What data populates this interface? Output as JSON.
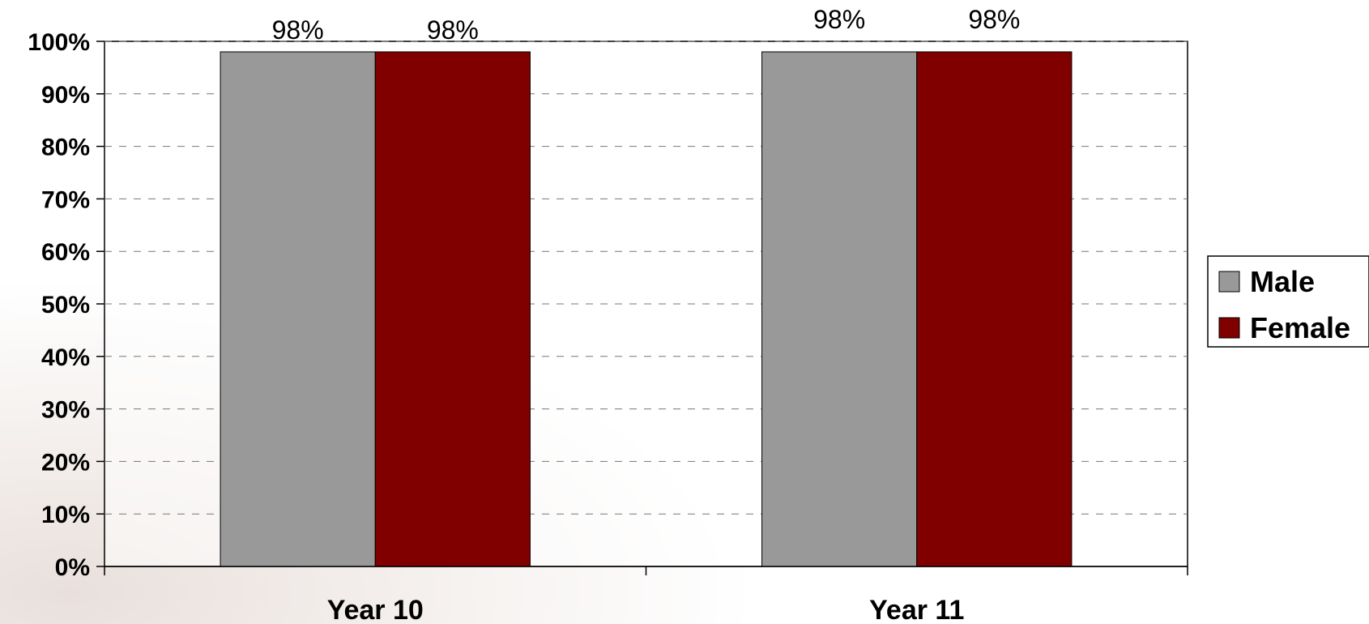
{
  "chart_data": {
    "type": "bar",
    "categories": [
      "Year 10",
      "Year 11"
    ],
    "series": [
      {
        "name": "Male",
        "values": [
          98,
          98
        ],
        "color": "#999999"
      },
      {
        "name": "Female",
        "values": [
          98,
          98
        ],
        "color": "#800000"
      }
    ],
    "data_labels": [
      [
        "98%",
        "98%"
      ],
      [
        "98%",
        "98%"
      ]
    ],
    "yticks": [
      "0%",
      "10%",
      "20%",
      "30%",
      "40%",
      "50%",
      "60%",
      "70%",
      "80%",
      "90%",
      "100%"
    ],
    "ylim": [
      0,
      100
    ],
    "grid": true,
    "legend_position": "right"
  }
}
